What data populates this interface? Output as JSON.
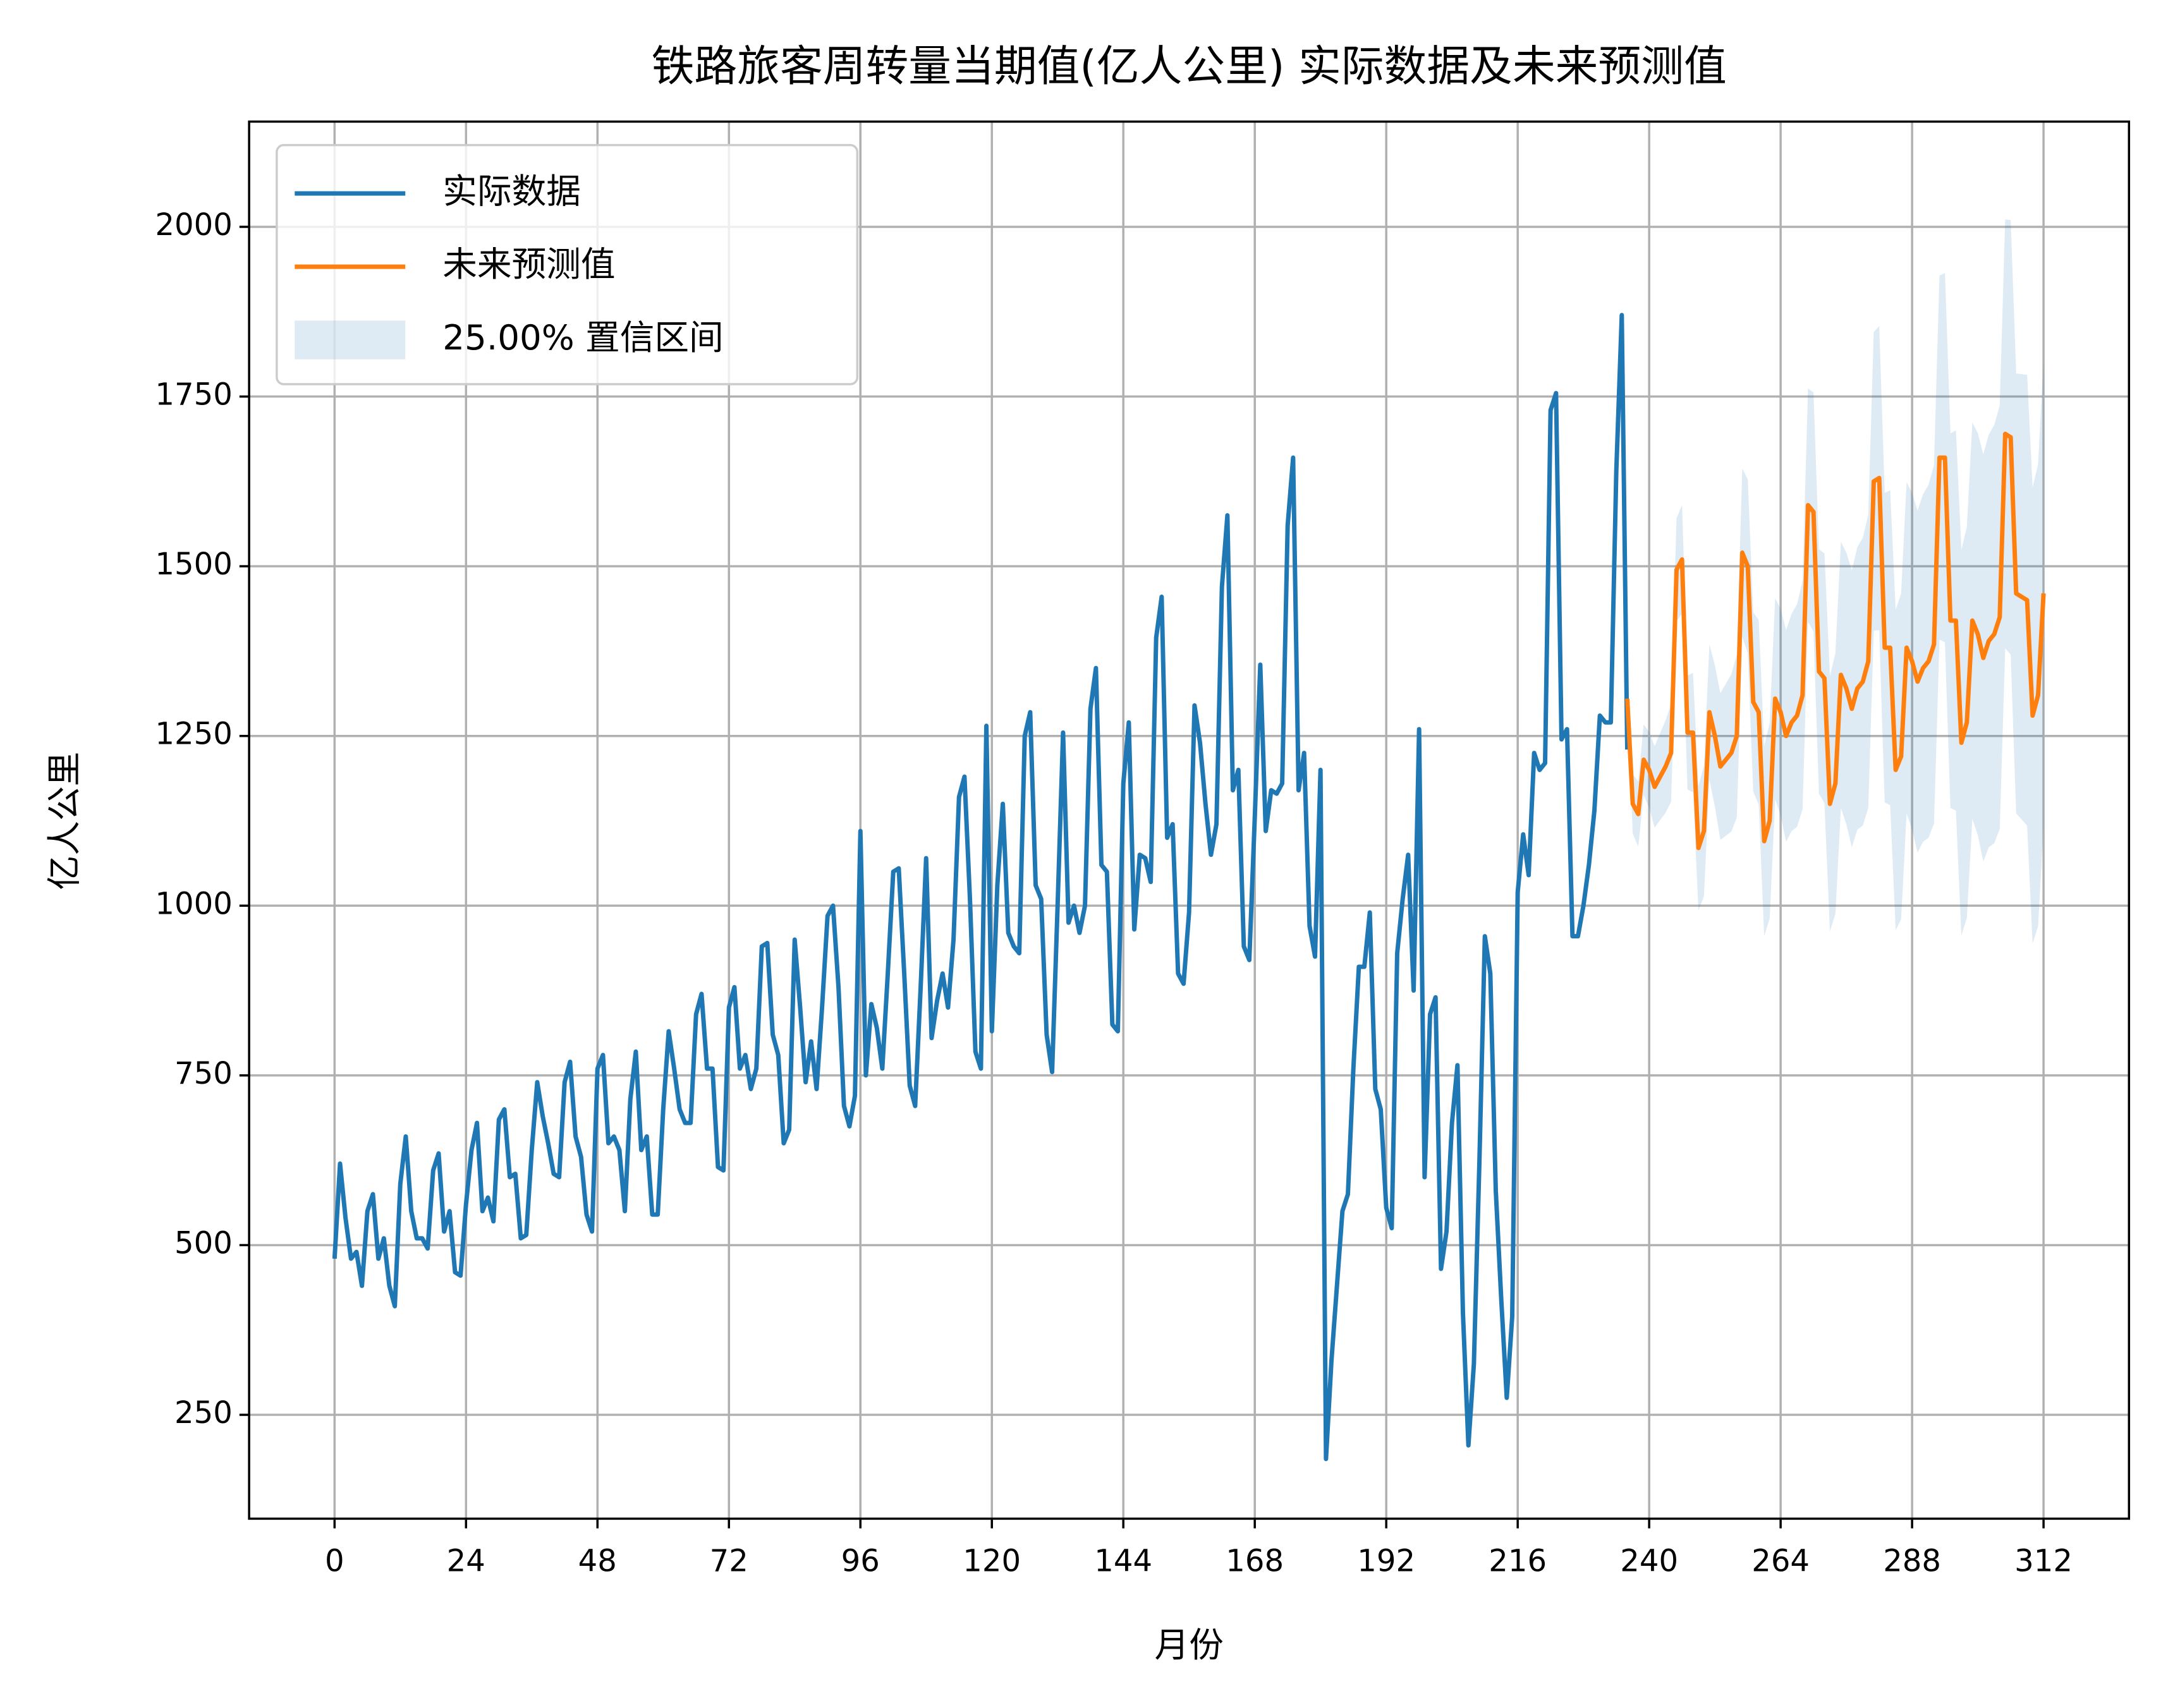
{
  "chart_data": {
    "type": "line",
    "title": "铁路旅客周转量当期值(亿人公里) 实际数据及未来预测值",
    "xlabel": "月份",
    "ylabel": "亿人公里",
    "xlim": [
      -15.6,
      327.6
    ],
    "ylim": [
      97,
      2155
    ],
    "xticks": [
      0,
      24,
      48,
      72,
      96,
      120,
      144,
      168,
      192,
      216,
      240,
      264,
      288,
      312
    ],
    "yticks": [
      250,
      500,
      750,
      1000,
      1250,
      1500,
      1750,
      2000
    ],
    "grid": true,
    "legend": "upper left",
    "series": [
      {
        "name": "实际数据",
        "color": "#1f77b4",
        "x": [
          0,
          1,
          2,
          3,
          4,
          5,
          6,
          7,
          8,
          9,
          10,
          11,
          12,
          13,
          14,
          15,
          16,
          17,
          18,
          19,
          20,
          21,
          22,
          23,
          24,
          25,
          26,
          27,
          28,
          29,
          30,
          31,
          32,
          33,
          34,
          35,
          36,
          37,
          38,
          39,
          40,
          41,
          42,
          43,
          44,
          45,
          46,
          47,
          48,
          49,
          50,
          51,
          52,
          53,
          54,
          55,
          56,
          57,
          58,
          59,
          60,
          61,
          62,
          63,
          64,
          65,
          66,
          67,
          68,
          69,
          70,
          71,
          72,
          73,
          74,
          75,
          76,
          77,
          78,
          79,
          80,
          81,
          82,
          83,
          84,
          85,
          86,
          87,
          88,
          89,
          90,
          91,
          92,
          93,
          94,
          95,
          96,
          97,
          98,
          99,
          100,
          101,
          102,
          103,
          104,
          105,
          106,
          107,
          108,
          109,
          110,
          111,
          112,
          113,
          114,
          115,
          116,
          117,
          118,
          119,
          120,
          121,
          122,
          123,
          124,
          125,
          126,
          127,
          128,
          129,
          130,
          131,
          132,
          133,
          134,
          135,
          136,
          137,
          138,
          139,
          140,
          141,
          142,
          143,
          144,
          145,
          146,
          147,
          148,
          149,
          150,
          151,
          152,
          153,
          154,
          155,
          156,
          157,
          158,
          159,
          160,
          161,
          162,
          163,
          164,
          165,
          166,
          167,
          168,
          169,
          170,
          171,
          172,
          173,
          174,
          175,
          176,
          177,
          178,
          179,
          180,
          181,
          182,
          183,
          184,
          185,
          186,
          187,
          188,
          189,
          190,
          191,
          192,
          193,
          194,
          195,
          196,
          197,
          198,
          199,
          200,
          201,
          202,
          203,
          204,
          205,
          206,
          207,
          208,
          209,
          210,
          211,
          212,
          213,
          214,
          215,
          216,
          217,
          218,
          219,
          220,
          221,
          222,
          223,
          224,
          225,
          226,
          227,
          228,
          229,
          230,
          231,
          232,
          233,
          234,
          235,
          236
        ],
        "values": [
          480,
          620,
          540,
          480,
          490,
          440,
          550,
          575,
          480,
          510,
          440,
          410,
          590,
          660,
          550,
          510,
          510,
          495,
          610,
          635,
          520,
          550,
          460,
          455,
          560,
          640,
          680,
          550,
          570,
          535,
          685,
          700,
          600,
          605,
          510,
          515,
          640,
          740,
          690,
          650,
          605,
          600,
          740,
          770,
          660,
          630,
          545,
          520,
          760,
          780,
          650,
          660,
          640,
          550,
          715,
          785,
          640,
          660,
          545,
          545,
          700,
          815,
          760,
          700,
          680,
          680,
          840,
          870,
          760,
          760,
          615,
          610,
          850,
          880,
          760,
          780,
          730,
          760,
          940,
          945,
          810,
          780,
          650,
          670,
          950,
          850,
          740,
          800,
          730,
          850,
          985,
          1000,
          880,
          705,
          675,
          720,
          1110,
          750,
          855,
          820,
          760,
          900,
          1050,
          1055,
          900,
          735,
          705,
          880,
          1070,
          805,
          860,
          900,
          850,
          950,
          1160,
          1190,
          1010,
          785,
          760,
          1265,
          815,
          1030,
          1150,
          960,
          940,
          930,
          1250,
          1285,
          1030,
          1010,
          810,
          755,
          1000,
          1255,
          975,
          1000,
          960,
          1000,
          1290,
          1350,
          1060,
          1050,
          825,
          815,
          1180,
          1270,
          965,
          1075,
          1070,
          1035,
          1395,
          1455,
          1100,
          1120,
          900,
          885,
          990,
          1295,
          1240,
          1150,
          1075,
          1120,
          1470,
          1575,
          1170,
          1200,
          940,
          920,
          1130,
          1355,
          1110,
          1170,
          1165,
          1180,
          1560,
          1660,
          1170,
          1225,
          970,
          925,
          1200,
          185,
          330,
          440,
          550,
          575,
          760,
          910,
          910,
          990,
          730,
          700,
          555,
          525,
          930,
          1010,
          1075,
          875,
          1260,
          600,
          840,
          865,
          465,
          520,
          680,
          765,
          400,
          205,
          325,
          620,
          955,
          900,
          580,
          420,
          275,
          395,
          1020,
          1105,
          1045,
          1225,
          1200,
          1210,
          1730,
          1755,
          1245,
          1260,
          955,
          955,
          1000,
          1060,
          1140,
          1280,
          1270,
          1270,
          1640,
          1870,
          1230
        ]
      },
      {
        "name": "未来预测值",
        "color": "#ff7f0e",
        "x": [
          236,
          237,
          238,
          239,
          240,
          241,
          242,
          243,
          244,
          245,
          246,
          247,
          248,
          249,
          250,
          251,
          252,
          253,
          254,
          255,
          256,
          257,
          258,
          259,
          260,
          261,
          262,
          263,
          264,
          265,
          266,
          267,
          268,
          269,
          270,
          271,
          272,
          273,
          274,
          275,
          276,
          277,
          278,
          279,
          280,
          281,
          282,
          283,
          284,
          285,
          286,
          287,
          288,
          289,
          290,
          291,
          292,
          293,
          294,
          295,
          296,
          297,
          298,
          299,
          300,
          301,
          302,
          303,
          304,
          305,
          306,
          307,
          308,
          309,
          310,
          311,
          312
        ],
        "values": [
          1305,
          1150,
          1135,
          1215,
          1200,
          1175,
          1190,
          1205,
          1225,
          1495,
          1510,
          1255,
          1255,
          1085,
          1110,
          1285,
          1250,
          1205,
          1215,
          1225,
          1250,
          1520,
          1500,
          1300,
          1285,
          1095,
          1125,
          1305,
          1285,
          1250,
          1270,
          1280,
          1310,
          1590,
          1580,
          1345,
          1335,
          1150,
          1180,
          1340,
          1320,
          1290,
          1320,
          1330,
          1360,
          1625,
          1630,
          1380,
          1380,
          1200,
          1220,
          1380,
          1360,
          1330,
          1350,
          1360,
          1385,
          1660,
          1660,
          1420,
          1420,
          1240,
          1270,
          1420,
          1400,
          1365,
          1390,
          1400,
          1425,
          1695,
          1690,
          1460,
          1455,
          1450,
          1280,
          1310,
          1460
        ]
      }
    ],
    "band": {
      "name": "25.00% 置信区间",
      "color": "#1f77b4",
      "lower": [
        1305,
        1106,
        1087,
        1163,
        1144,
        1115,
        1126,
        1137,
        1153,
        1419,
        1430,
        1171,
        1167,
        993,
        1014,
        1185,
        1146,
        1097,
        1103,
        1109,
        1130,
        1396,
        1372,
        1168,
        1149,
        955,
        981,
        1157,
        1133,
        1094,
        1110,
        1116,
        1142,
        1418,
        1404,
        1165,
        1151,
        962,
        988,
        1144,
        1120,
        1086,
        1112,
        1118,
        1144,
        1405,
        1406,
        1152,
        1148,
        964,
        980,
        1136,
        1112,
        1078,
        1094,
        1100,
        1121,
        1392,
        1388,
        1144,
        1140,
        956,
        982,
        1128,
        1104,
        1065,
        1086,
        1092,
        1113,
        1379,
        1370,
        1136,
        1127,
        1118,
        944,
        970,
        1116
      ],
      "upper": [
        1305,
        1194,
        1183,
        1267,
        1256,
        1235,
        1254,
        1273,
        1297,
        1571,
        1590,
        1339,
        1343,
        1177,
        1206,
        1385,
        1354,
        1313,
        1327,
        1341,
        1370,
        1644,
        1628,
        1432,
        1421,
        1235,
        1269,
        1453,
        1437,
        1406,
        1430,
        1444,
        1478,
        1762,
        1756,
        1525,
        1519,
        1338,
        1372,
        1536,
        1520,
        1494,
        1528,
        1542,
        1576,
        1845,
        1854,
        1608,
        1612,
        1436,
        1460,
        1624,
        1608,
        1582,
        1606,
        1620,
        1649,
        1928,
        1932,
        1696,
        1700,
        1524,
        1558,
        1712,
        1696,
        1665,
        1694,
        1708,
        1737,
        2011,
        2010,
        1784,
        1783,
        1782,
        1616,
        1650,
        1804
      ]
    }
  }
}
